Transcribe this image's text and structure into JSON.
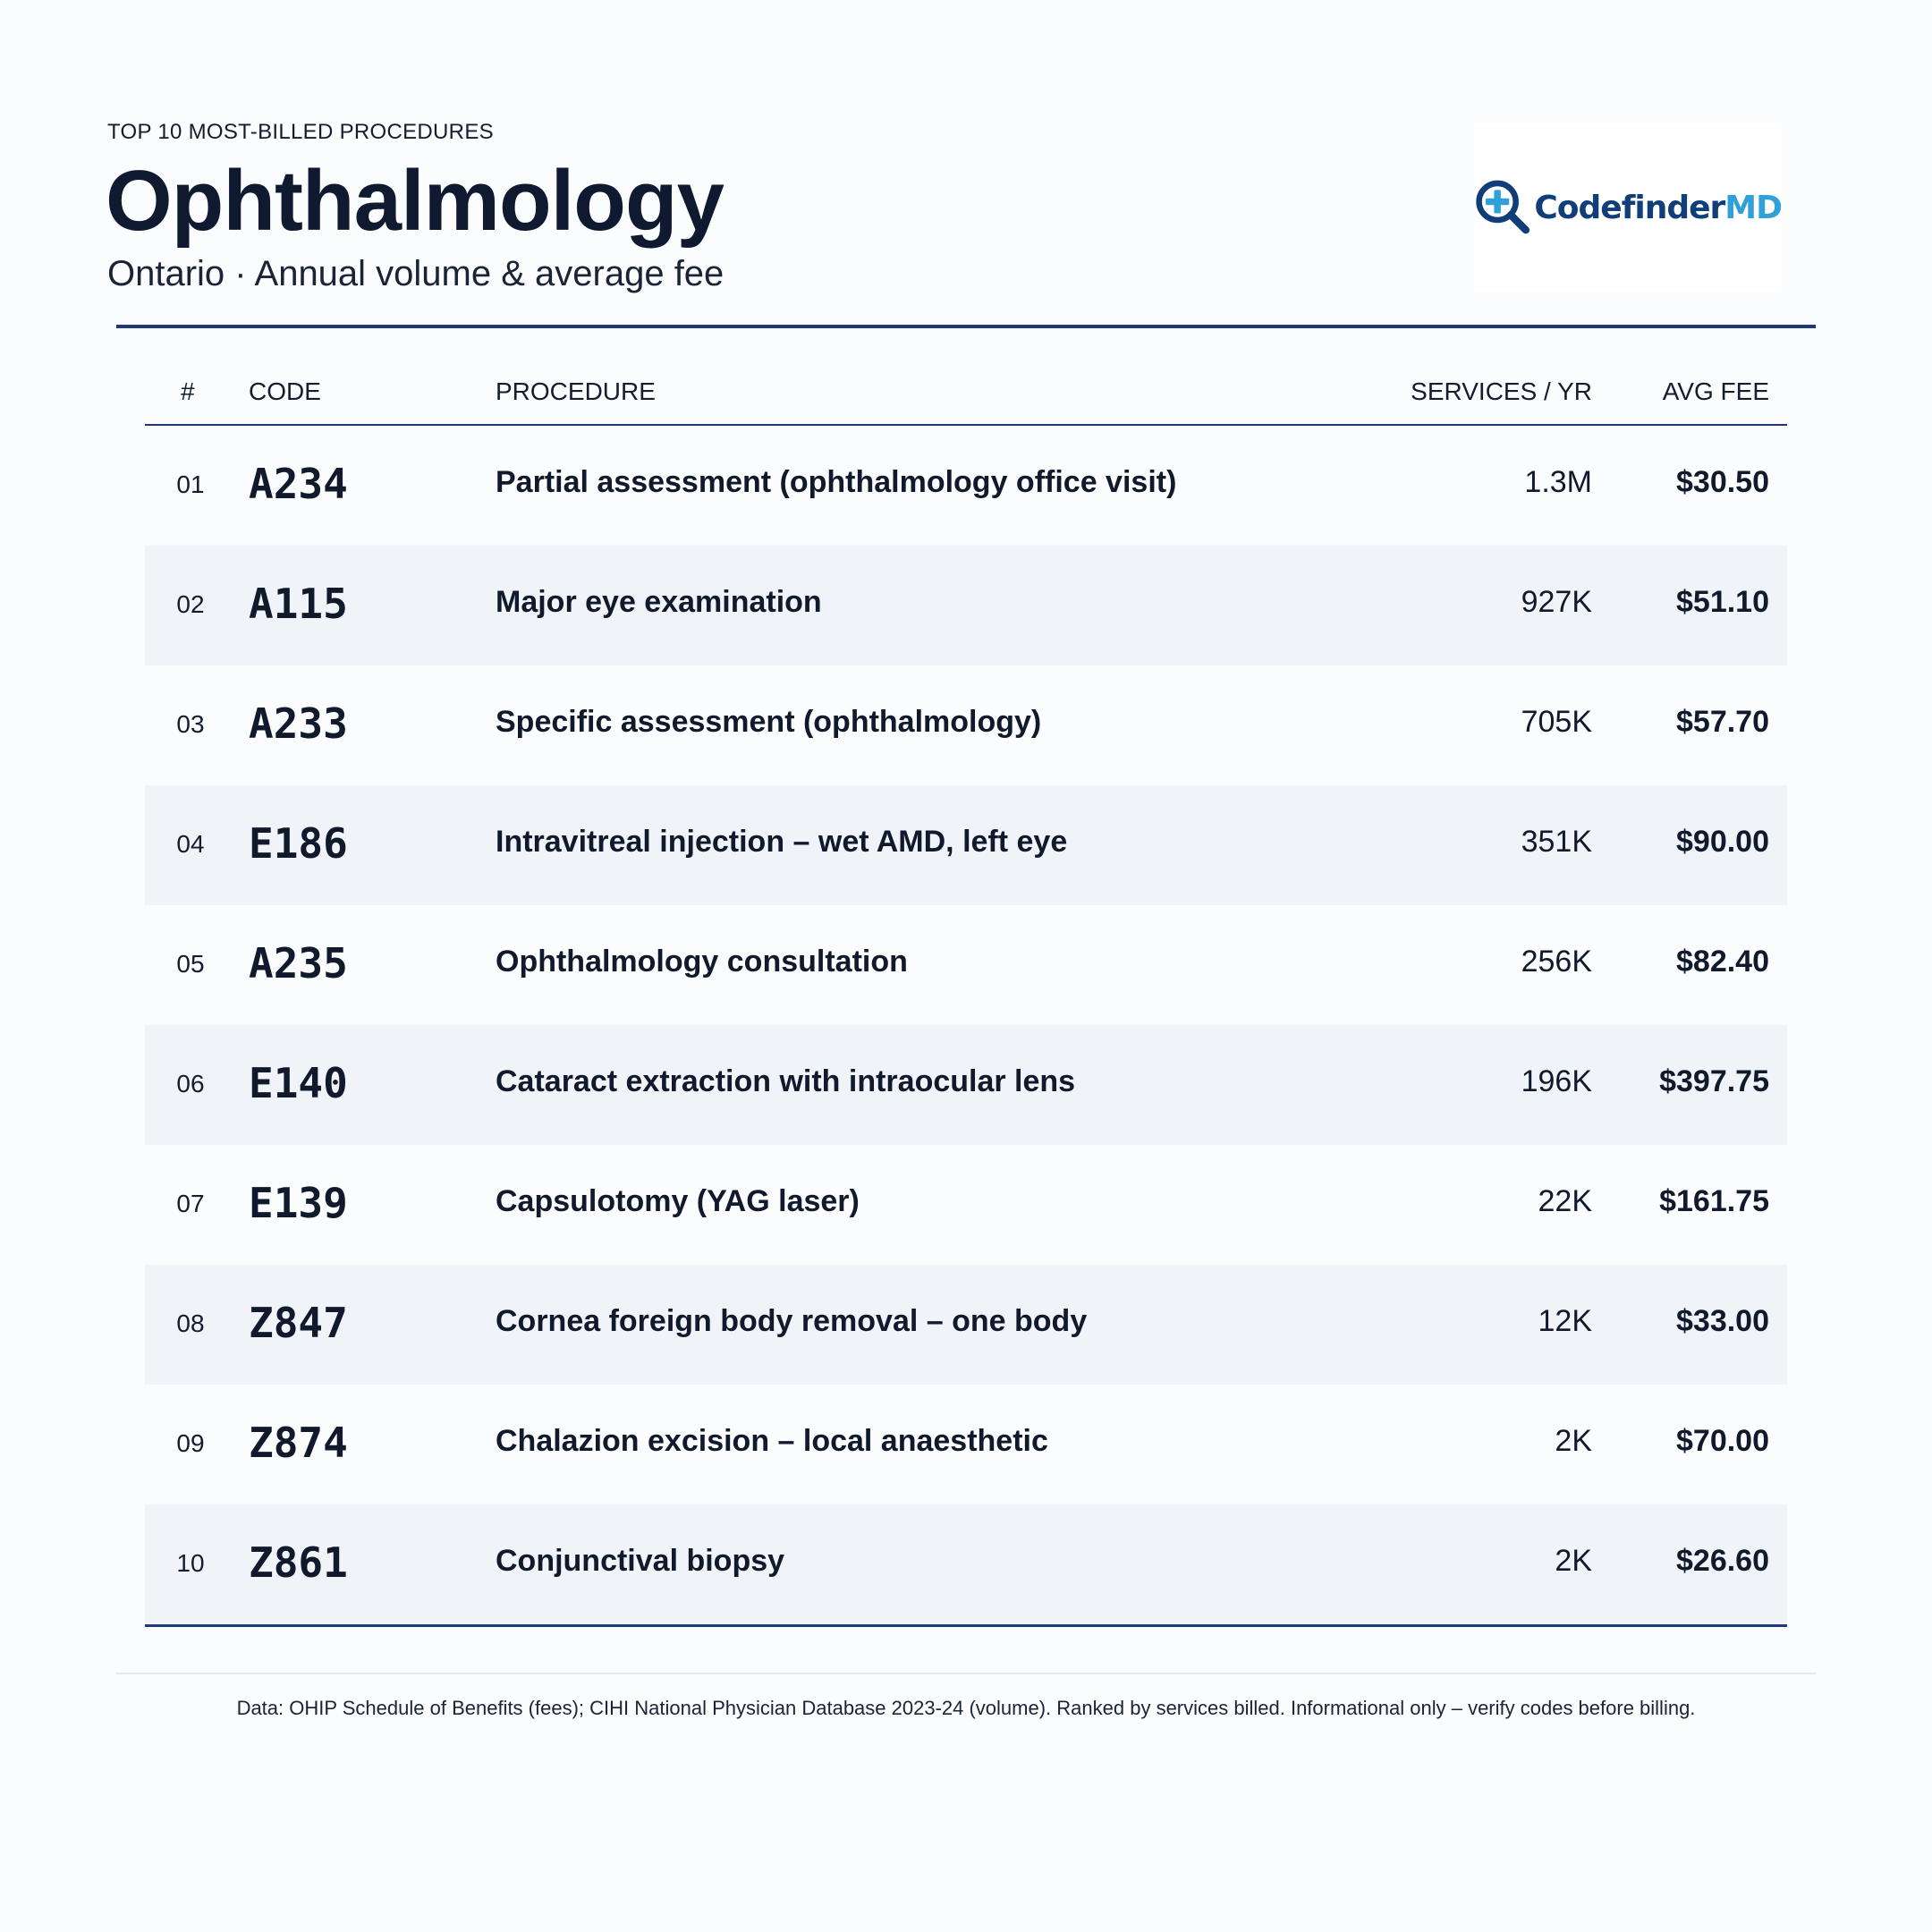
{
  "header": {
    "kicker": "TOP 10 MOST-BILLED PROCEDURES",
    "title": "Ophthalmology",
    "subtitle": "Ontario · Annual volume & average fee"
  },
  "logo": {
    "brand_part1": "Codefinder",
    "brand_part2": "MD",
    "icon": "magnifier-plus-icon",
    "colors": {
      "primary": "#0f3e78",
      "accent": "#2fa0d8"
    }
  },
  "table": {
    "columns": [
      "#",
      "CODE",
      "PROCEDURE",
      "SERVICES / YR",
      "AVG FEE"
    ],
    "rows": [
      {
        "num": "01",
        "code": "A234",
        "procedure": "Partial assessment (ophthalmology office visit)",
        "services": "1.3M",
        "fee": "$30.50"
      },
      {
        "num": "02",
        "code": "A115",
        "procedure": "Major eye examination",
        "services": "927K",
        "fee": "$51.10"
      },
      {
        "num": "03",
        "code": "A233",
        "procedure": "Specific assessment (ophthalmology)",
        "services": "705K",
        "fee": "$57.70"
      },
      {
        "num": "04",
        "code": "E186",
        "procedure": "Intravitreal injection – wet AMD, left eye",
        "services": "351K",
        "fee": "$90.00"
      },
      {
        "num": "05",
        "code": "A235",
        "procedure": "Ophthalmology consultation",
        "services": "256K",
        "fee": "$82.40"
      },
      {
        "num": "06",
        "code": "E140",
        "procedure": "Cataract extraction with intraocular lens",
        "services": "196K",
        "fee": "$397.75"
      },
      {
        "num": "07",
        "code": "E139",
        "procedure": "Capsulotomy (YAG laser)",
        "services": "22K",
        "fee": "$161.75"
      },
      {
        "num": "08",
        "code": "Z847",
        "procedure": "Cornea foreign body removal – one body",
        "services": "12K",
        "fee": "$33.00"
      },
      {
        "num": "09",
        "code": "Z874",
        "procedure": "Chalazion excision – local anaesthetic",
        "services": "2K",
        "fee": "$70.00"
      },
      {
        "num": "10",
        "code": "Z861",
        "procedure": "Conjunctival biopsy",
        "services": "2K",
        "fee": "$26.60"
      }
    ]
  },
  "footer": {
    "source": "Data: OHIP Schedule of Benefits (fees); CIHI National Physician Database 2023-24 (volume). Ranked by services billed. Informational only – verify codes before billing."
  },
  "colors": {
    "accent_rule": "#1d3a74",
    "stripe": "#f0f4f9",
    "text": "#111a2c"
  }
}
